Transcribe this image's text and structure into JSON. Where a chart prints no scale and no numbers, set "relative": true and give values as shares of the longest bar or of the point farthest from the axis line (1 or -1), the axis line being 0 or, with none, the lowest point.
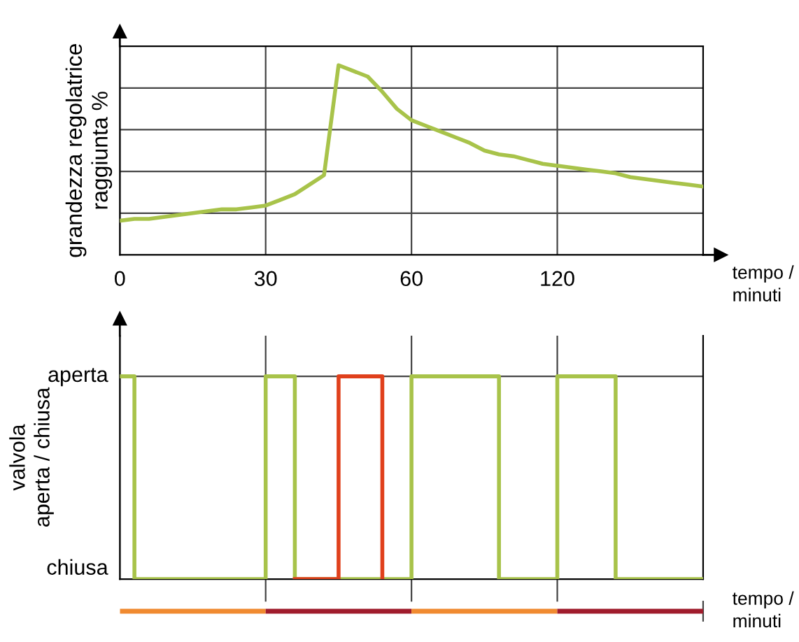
{
  "chart_data": [
    {
      "type": "line",
      "relative": true,
      "ylabel": "grandezza regolatrice\nraggiunta %",
      "xlabel": "tempo /\nminuti",
      "grid": true,
      "categories": [
        "0",
        null,
        null,
        null,
        null,
        null,
        null,
        null,
        null,
        null,
        "30",
        null,
        null,
        null,
        null,
        null,
        null,
        null,
        null,
        null,
        "60",
        null,
        null,
        null,
        null,
        null,
        null,
        null,
        null,
        null,
        "120",
        null,
        null,
        null,
        null,
        null,
        null,
        null,
        null,
        null,
        null
      ],
      "series": [
        {
          "color": "#a8c34a",
          "values": [
            0.18,
            0.19,
            0.19,
            0.2,
            0.21,
            0.22,
            0.23,
            0.24,
            0.24,
            0.25,
            0.26,
            0.29,
            0.32,
            0.37,
            0.42,
            1.0,
            0.97,
            0.94,
            0.86,
            0.77,
            0.71,
            0.68,
            0.65,
            0.62,
            0.59,
            0.55,
            0.53,
            0.52,
            0.5,
            0.48,
            0.47,
            0.46,
            0.45,
            0.44,
            0.43,
            0.41,
            0.4,
            0.39,
            0.38,
            0.37,
            0.36
          ]
        }
      ]
    },
    {
      "type": "step",
      "relative": true,
      "ylabel": "valvola\naperta / chiusa",
      "annotations": [
        "chiusa",
        "aperta"
      ],
      "grid": "x",
      "tick_labels": false,
      "categories": [
        "0",
        null,
        null,
        null,
        null,
        null,
        null,
        null,
        null,
        null,
        "30",
        null,
        null,
        null,
        null,
        null,
        null,
        null,
        null,
        null,
        "60",
        null,
        null,
        null,
        null,
        null,
        null,
        null,
        null,
        null,
        "120",
        null,
        null,
        null,
        null,
        null,
        null,
        null,
        null,
        null,
        null
      ],
      "series": [
        {
          "color": "#a8c34a",
          "values": [
            1,
            0,
            0,
            0,
            0,
            0,
            0,
            0,
            0,
            0,
            1,
            1,
            0,
            0,
            0,
            0,
            0,
            0,
            0,
            0,
            1,
            1,
            1,
            1,
            1,
            1,
            0,
            0,
            0,
            0,
            1,
            1,
            1,
            1,
            0,
            0,
            0,
            0,
            0,
            0,
            0
          ]
        },
        {
          "color": "#e0401c",
          "values": [
            null,
            null,
            null,
            null,
            null,
            null,
            null,
            null,
            null,
            null,
            null,
            null,
            0,
            0,
            0,
            1,
            1,
            1,
            0,
            null,
            null,
            null,
            null,
            null,
            null,
            null,
            null,
            null,
            null,
            null,
            null,
            null,
            null,
            null,
            null,
            null,
            null,
            null,
            null,
            null,
            null
          ]
        }
      ]
    },
    {
      "type": "bar",
      "relative": true,
      "orientation": "horizontal",
      "stacked": true,
      "categories": [
        null
      ],
      "xlabel": "tempo /\nminuti",
      "series": [
        {
          "color": "#f08a30",
          "values": [
            0.25
          ]
        },
        {
          "color": "#a01c2c",
          "values": [
            0.25
          ]
        },
        {
          "color": "#f08a30",
          "values": [
            0.25
          ]
        },
        {
          "color": "#a01c2c",
          "values": [
            0.25
          ]
        }
      ]
    }
  ]
}
